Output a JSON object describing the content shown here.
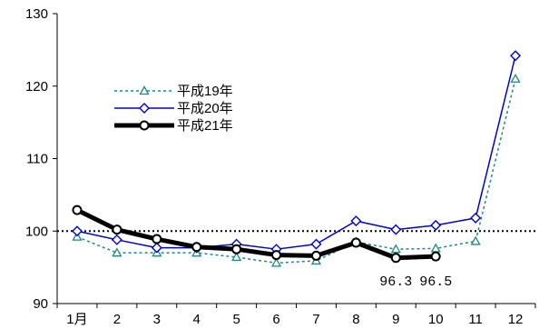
{
  "chart_data": {
    "type": "line",
    "categories": [
      "1月",
      "2",
      "3",
      "4",
      "5",
      "6",
      "7",
      "8",
      "9",
      "10",
      "11",
      "12"
    ],
    "ylim": [
      90,
      130
    ],
    "yticks": [
      "90",
      "100",
      "110",
      "120",
      "130"
    ],
    "reference_line": 100,
    "legend_position": "upper-left",
    "series": [
      {
        "name": "平成19年",
        "color": "#1a8a86",
        "style": "dotted",
        "marker": "triangle",
        "values": [
          99.2,
          97.0,
          97.0,
          97.0,
          96.4,
          95.6,
          95.9,
          98.5,
          97.5,
          97.6,
          98.6,
          121.0
        ]
      },
      {
        "name": "平成20年",
        "color": "#0000cc",
        "style": "solid-thin",
        "marker": "diamond",
        "values": [
          100.0,
          98.8,
          97.7,
          97.7,
          98.2,
          97.5,
          98.2,
          101.4,
          100.2,
          100.8,
          101.8,
          124.2
        ]
      },
      {
        "name": "平成21年",
        "color": "#000000",
        "style": "solid-thick",
        "marker": "circle",
        "values": [
          102.9,
          100.2,
          98.9,
          97.8,
          97.5,
          96.7,
          96.6,
          98.4,
          96.3,
          96.5,
          null,
          null
        ]
      }
    ],
    "annotations": [
      {
        "text": "96.3",
        "category": "9"
      },
      {
        "text": "96.5",
        "category": "10"
      }
    ]
  }
}
